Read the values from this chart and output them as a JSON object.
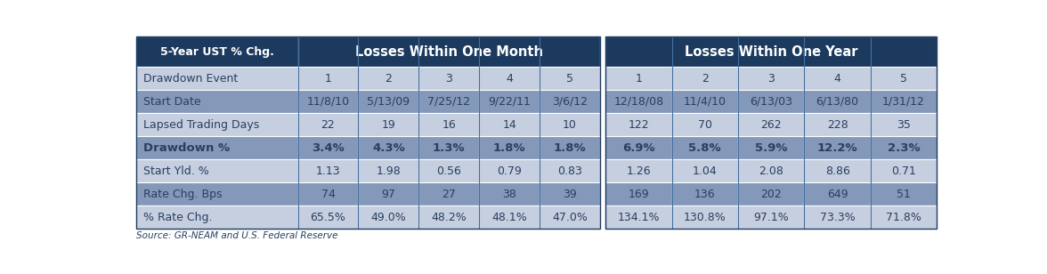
{
  "rows": [
    [
      "Drawdown Event",
      "1",
      "2",
      "3",
      "4",
      "5",
      "1",
      "2",
      "3",
      "4",
      "5"
    ],
    [
      "Start Date",
      "11/8/10",
      "5/13/09",
      "7/25/12",
      "9/22/11",
      "3/6/12",
      "12/18/08",
      "11/4/10",
      "6/13/03",
      "6/13/80",
      "1/31/12"
    ],
    [
      "Lapsed Trading Days",
      "22",
      "19",
      "16",
      "14",
      "10",
      "122",
      "70",
      "262",
      "228",
      "35"
    ],
    [
      "Drawdown %",
      "3.4%",
      "4.3%",
      "1.3%",
      "1.8%",
      "1.8%",
      "6.9%",
      "5.8%",
      "5.9%",
      "12.2%",
      "2.3%"
    ],
    [
      "Start Yld. %",
      "1.13",
      "1.98",
      "0.56",
      "0.79",
      "0.83",
      "1.26",
      "1.04",
      "2.08",
      "8.86",
      "0.71"
    ],
    [
      "Rate Chg. Bps",
      "74",
      "97",
      "27",
      "38",
      "39",
      "169",
      "136",
      "202",
      "649",
      "51"
    ],
    [
      "% Rate Chg.",
      "65.5%",
      "49.0%",
      "48.2%",
      "48.1%",
      "47.0%",
      "134.1%",
      "130.8%",
      "97.1%",
      "73.3%",
      "71.8%"
    ]
  ],
  "bold_rows": [
    3
  ],
  "header_dark": "#1c3a5e",
  "row_light": "#c5cfe0",
  "row_dark": "#8499ba",
  "text_header": "#ffffff",
  "text_body": "#2a3f5f",
  "divider_color": "#4470a0",
  "background": "#ffffff",
  "source_text": "Source: GR-NEAM and U.S. Federal Reserve",
  "header_month": "Losses Within One Month",
  "header_year": "Losses Within One Year",
  "header_left": "5-Year UST % Chg.",
  "figsize": [
    11.76,
    3.08
  ],
  "dpi": 100
}
